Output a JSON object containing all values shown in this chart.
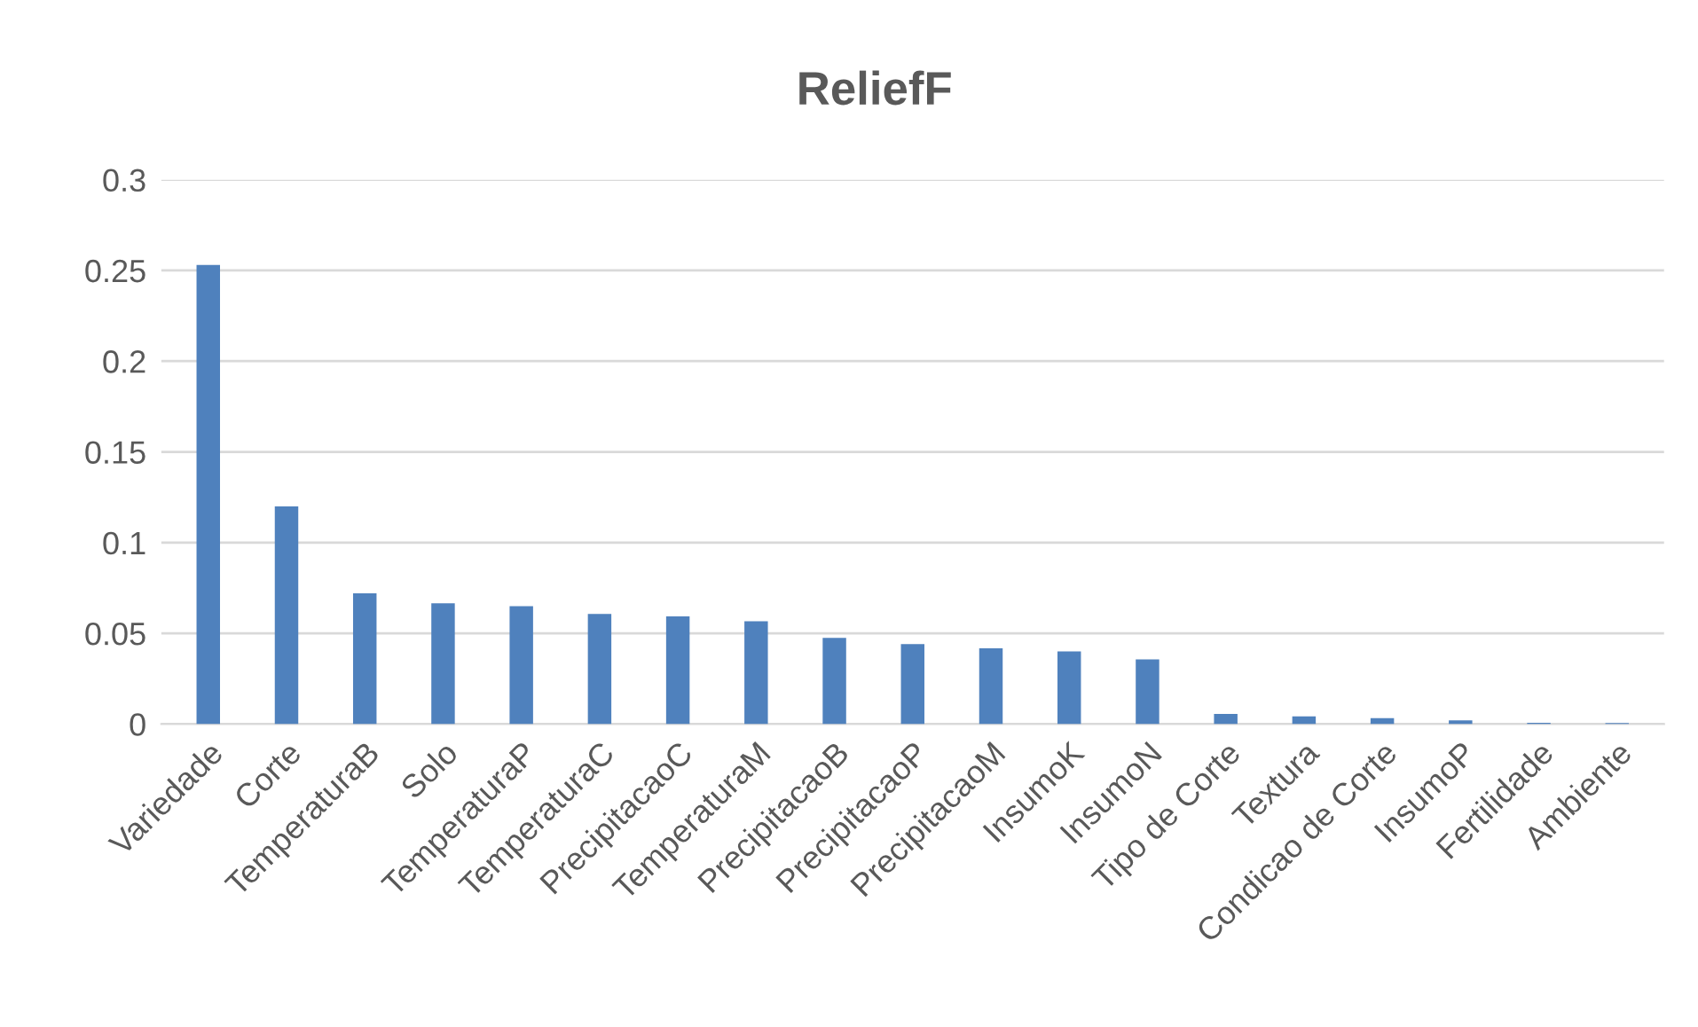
{
  "chart_data": {
    "type": "bar",
    "title": "ReliefF",
    "categories": [
      "Variedade",
      "Corte",
      "TemperaturaB",
      "Solo",
      "TemperaturaP",
      "TemperaturaC",
      "PrecipitacaoC",
      "TemperaturaM",
      "PrecipitacaoB",
      "PrecipitacaoP",
      "PrecipitacaoM",
      "InsumoK",
      "InsumoN",
      "Tipo de Corte",
      "Textura",
      "Condicao de Corte",
      "InsumoP",
      "Fertilidade",
      "Ambiente"
    ],
    "values": [
      0.253,
      0.12,
      0.072,
      0.0666,
      0.065,
      0.0607,
      0.0593,
      0.0567,
      0.0475,
      0.044,
      0.0418,
      0.04,
      0.0356,
      0.0056,
      0.0042,
      0.0033,
      0.002,
      0.0007,
      0.0005
    ],
    "color": "#4f81bd",
    "ylim": [
      0,
      0.3
    ],
    "yticks": [
      {
        "value": 0,
        "label": "0"
      },
      0.05,
      0.1,
      0.15,
      0.2,
      0.25,
      0.3
    ],
    "grid": "y"
  }
}
